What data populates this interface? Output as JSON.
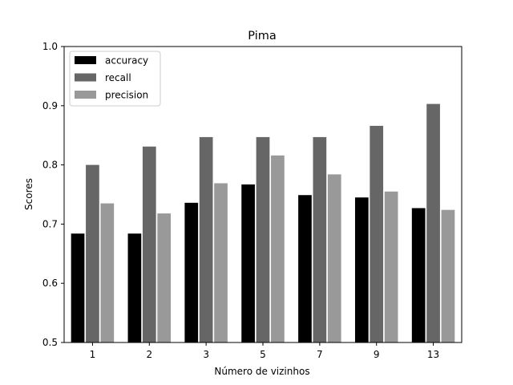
{
  "chart_data": {
    "type": "bar",
    "title": "Pima",
    "xlabel": "Número de vizinhos",
    "ylabel": "Scores",
    "categories": [
      "1",
      "2",
      "3",
      "5",
      "7",
      "9",
      "13"
    ],
    "ylim": [
      0.5,
      1.0
    ],
    "yticks": [
      "0.5",
      "0.6",
      "0.7",
      "0.8",
      "0.9",
      "1.0"
    ],
    "grid": false,
    "legend_position": "top-left",
    "series": [
      {
        "name": "accuracy",
        "color": "#000000",
        "values": [
          0.684,
          0.684,
          0.736,
          0.767,
          0.749,
          0.745,
          0.727
        ]
      },
      {
        "name": "recall",
        "color": "#666666",
        "values": [
          0.8,
          0.831,
          0.847,
          0.847,
          0.847,
          0.866,
          0.903
        ]
      },
      {
        "name": "precision",
        "color": "#999999",
        "values": [
          0.735,
          0.718,
          0.769,
          0.816,
          0.784,
          0.755,
          0.724
        ]
      }
    ]
  }
}
